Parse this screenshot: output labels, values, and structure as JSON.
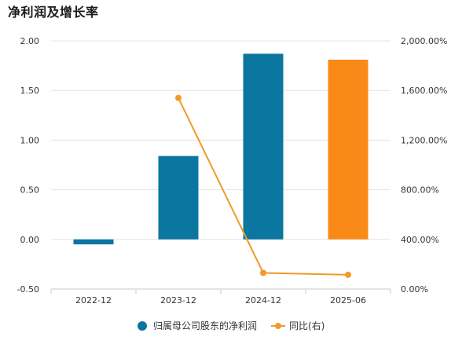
{
  "page_title": "净利润及增长率",
  "chart_data": {
    "type": "bar",
    "title": "净利润及增长率",
    "categories": [
      "2022-12",
      "2023-12",
      "2024-12",
      "2025-06"
    ],
    "series": [
      {
        "name": "归属母公司股东的净利润",
        "type": "bar",
        "axis": "left",
        "values": [
          -0.05,
          0.84,
          1.87,
          1.81
        ],
        "colors": [
          "#0b76a0",
          "#0b76a0",
          "#0b76a0",
          "#f98a18"
        ]
      },
      {
        "name": "同比(右)",
        "type": "line",
        "axis": "right",
        "values": [
          null,
          1540,
          130,
          115
        ],
        "color": "#f09a2a"
      }
    ],
    "left_axis": {
      "ylim": [
        -0.5,
        2.0
      ],
      "ticks": [
        "2.00",
        "1.50",
        "1.00",
        "0.50",
        "0.00",
        "-0.50"
      ],
      "tick_values": [
        2.0,
        1.5,
        1.0,
        0.5,
        0.0,
        -0.5
      ]
    },
    "right_axis": {
      "ylim": [
        0,
        2000
      ],
      "ticks": [
        "2,000.00%",
        "1,600.00%",
        "1,200.00%",
        "800.00%",
        "400.00%",
        "0.00%"
      ],
      "tick_values": [
        2000,
        1600,
        1200,
        800,
        400,
        0
      ]
    },
    "grid": true,
    "legend_position": "bottom"
  }
}
